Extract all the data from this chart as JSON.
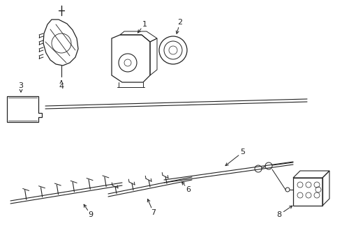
{
  "bg_color": "#ffffff",
  "line_color": "#222222",
  "figsize": [
    4.9,
    3.6
  ],
  "dpi": 100
}
